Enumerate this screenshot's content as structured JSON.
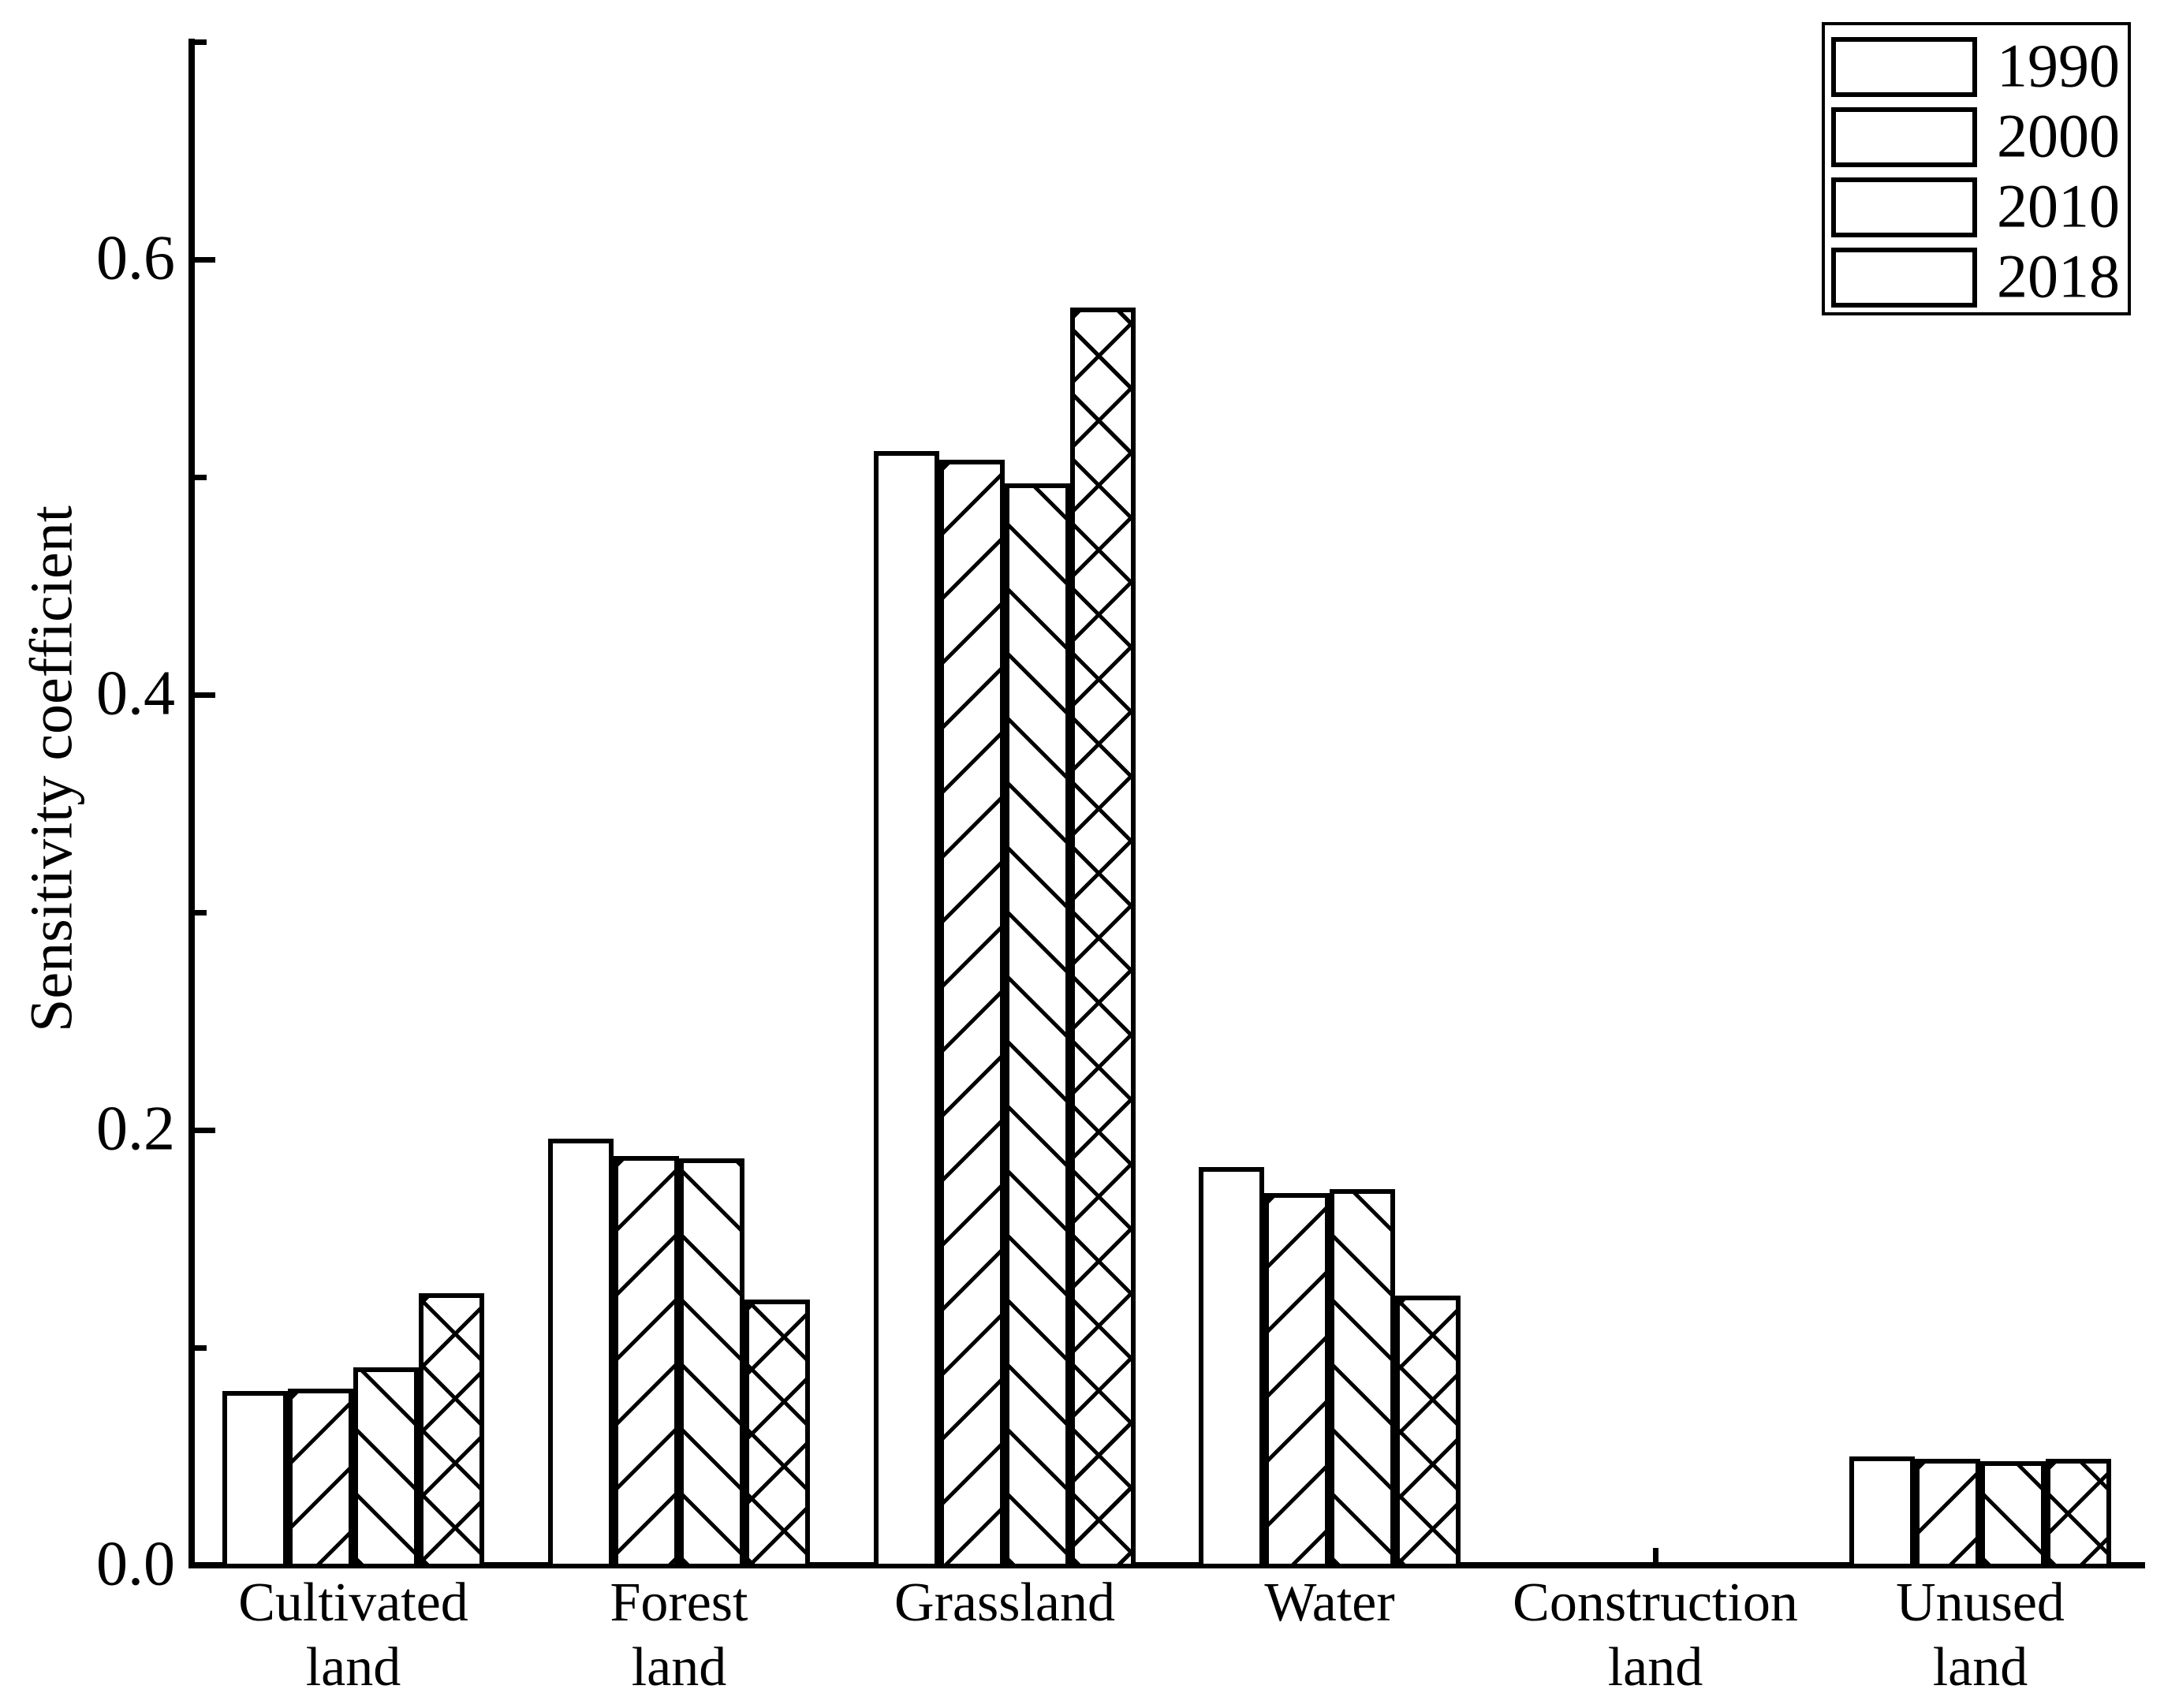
{
  "chart_data": {
    "type": "bar",
    "title": "",
    "xlabel": "",
    "ylabel": "Sensitivity coefficient",
    "ylim": [
      0,
      0.7
    ],
    "grid": false,
    "legend_position": "top-right",
    "bar_fill_color": "#ffffff",
    "edge_color": "#000000",
    "categories": [
      "Cultivated land",
      "Forest land",
      "Grassland",
      "Water",
      "Construction land",
      "Unused land"
    ],
    "category_label_lines": [
      [
        "Cultivated",
        "land"
      ],
      [
        "Forest",
        "land"
      ],
      [
        "Grassland"
      ],
      [
        "Water"
      ],
      [
        "Construction",
        "land"
      ],
      [
        "Unused",
        "land"
      ]
    ],
    "yticks_major": [
      {
        "label": "0.0",
        "value": 0.0
      },
      {
        "label": "0.2",
        "value": 0.2
      },
      {
        "label": "0.4",
        "value": 0.4
      },
      {
        "label": "0.6",
        "value": 0.6
      }
    ],
    "yticks_minor": [
      0.1,
      0.3,
      0.5,
      0.7
    ],
    "series": [
      {
        "name": "1990",
        "hatch": "none",
        "values": [
          0.08,
          0.196,
          0.512,
          0.183,
          0,
          0.05
        ]
      },
      {
        "name": "2000",
        "hatch": "forward-diagonal",
        "values": [
          0.081,
          0.188,
          0.508,
          0.171,
          0,
          0.049
        ]
      },
      {
        "name": "2010",
        "hatch": "backward-diagonal",
        "values": [
          0.091,
          0.187,
          0.497,
          0.173,
          0,
          0.048
        ]
      },
      {
        "name": "2018",
        "hatch": "crosshatch",
        "values": [
          0.125,
          0.122,
          0.578,
          0.124,
          0,
          0.049
        ]
      }
    ]
  }
}
